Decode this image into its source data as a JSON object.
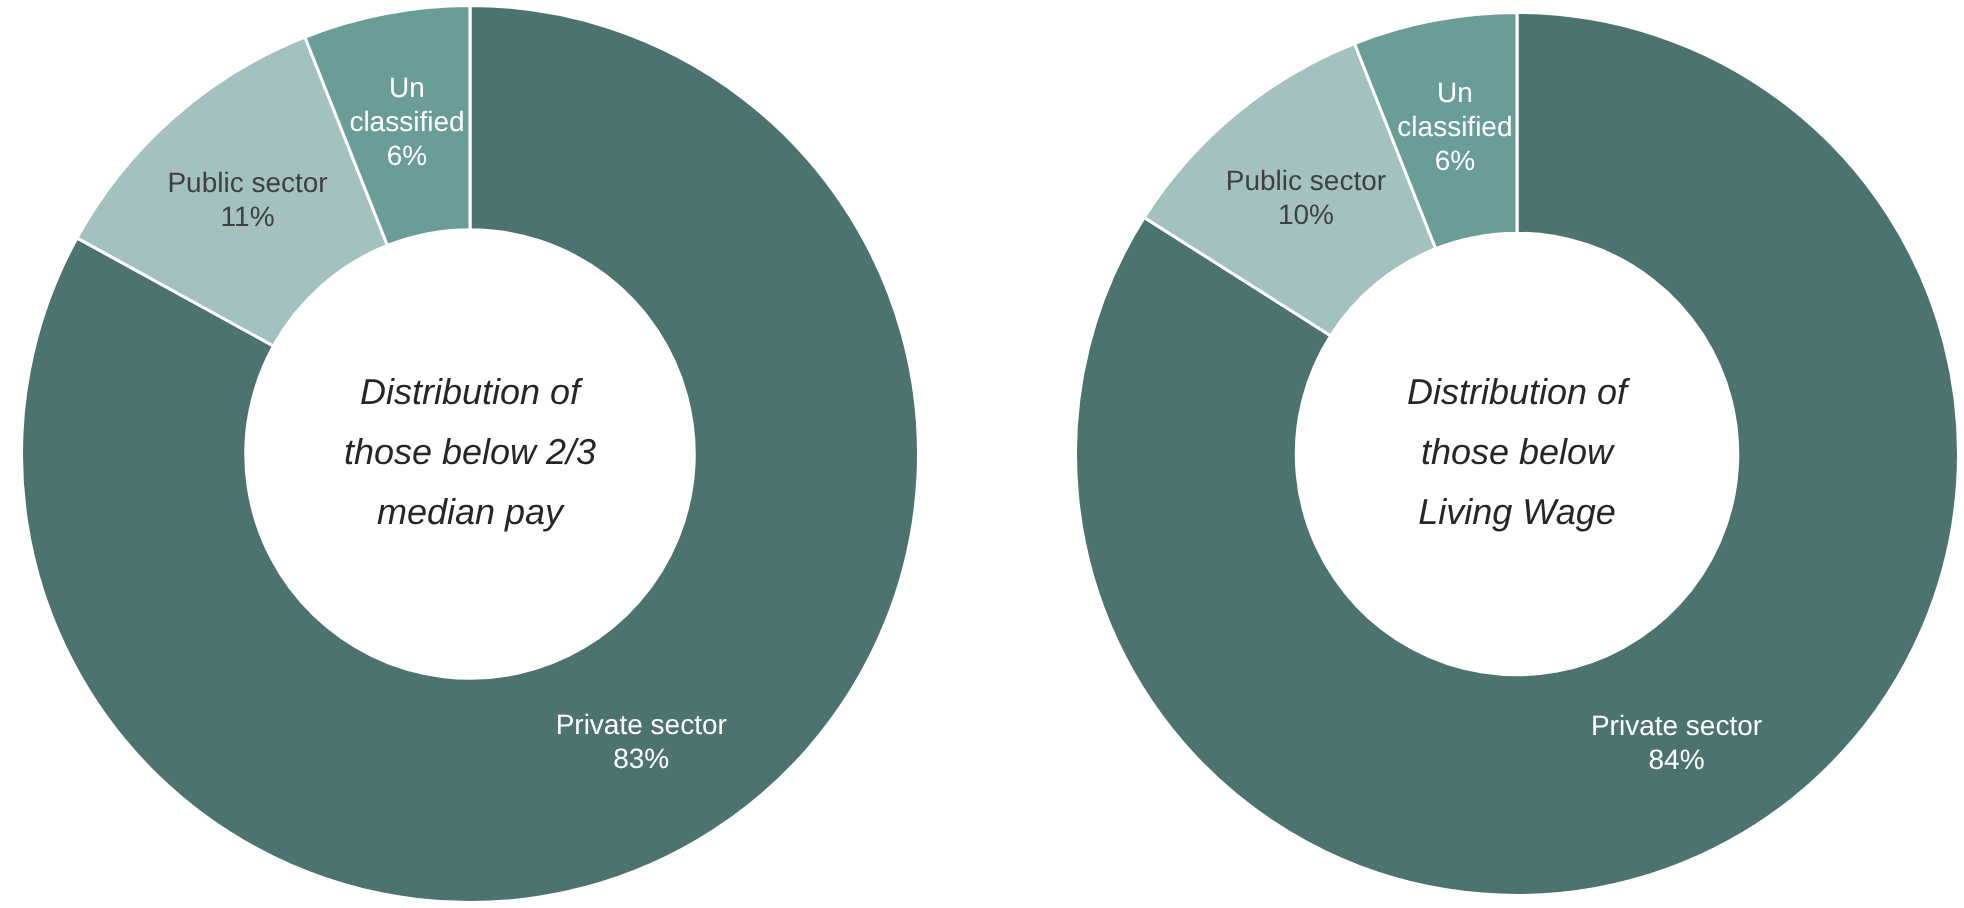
{
  "chart_data": [
    {
      "type": "donut",
      "categories": [
        "Private sector",
        "Public sector",
        "Un classified"
      ],
      "values": [
        83,
        11,
        6
      ],
      "value_labels": [
        "83%",
        "11%",
        "6%"
      ],
      "colors": [
        "#4d7370",
        "#a3c1be",
        "#6a9c98"
      ],
      "legend": false,
      "annotations": [
        "Distribution of those below 2/3 median pay"
      ]
    },
    {
      "type": "donut",
      "categories": [
        "Private sector",
        "Public sector",
        "Un classified"
      ],
      "values": [
        84,
        10,
        6
      ],
      "value_labels": [
        "84%",
        "10%",
        "6%"
      ],
      "colors": [
        "#4d7370",
        "#a3c1be",
        "#6a9c98"
      ],
      "legend": false,
      "annotations": [
        "Distribution of those below Living Wage"
      ]
    }
  ]
}
